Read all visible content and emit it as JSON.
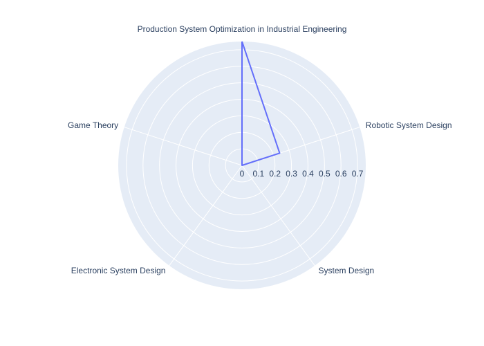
{
  "chart_data": {
    "type": "radar",
    "categories": [
      "Production System Optimization in Industrial Engineering",
      "Robotic System Design",
      "System Design",
      "Electronic System Design",
      "Game Theory"
    ],
    "series": [
      {
        "values": [
          0.75,
          0.24,
          0,
          0,
          0
        ],
        "color": "#636efa"
      }
    ],
    "radial_range": [
      0,
      0.75
    ],
    "radial_ticks": [
      "0",
      "0.1",
      "0.2",
      "0.3",
      "0.4",
      "0.5",
      "0.6",
      "0.7"
    ],
    "radial_tick_values": [
      0,
      0.1,
      0.2,
      0.3,
      0.4,
      0.5,
      0.6,
      0.7
    ],
    "grid": true,
    "polar_bgcolor": "#e5ecf6",
    "grid_color": "#ffffff",
    "text_color": "#2a3f5f"
  }
}
